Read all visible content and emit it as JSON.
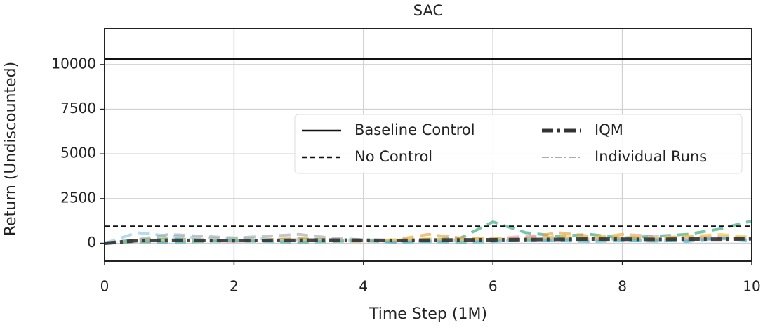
{
  "chart_data": {
    "type": "line",
    "title": "SAC",
    "xlabel": "Time Step (1M)",
    "ylabel": "Return (Undiscounted)",
    "x": [
      0,
      0.5,
      1,
      1.5,
      2,
      2.5,
      3,
      3.5,
      4,
      4.5,
      5,
      5.5,
      6,
      6.5,
      7,
      7.5,
      8,
      8.5,
      9,
      9.5,
      10
    ],
    "xlim": [
      0,
      10
    ],
    "xticks": [
      0,
      2,
      4,
      6,
      8,
      10
    ],
    "ylim": [
      -1000,
      12000
    ],
    "yticks": [
      0,
      2500,
      5000,
      7500,
      10000
    ],
    "grid": true,
    "hlines": [
      {
        "name": "Baseline Control",
        "value": 10300,
        "color": "#111111",
        "style": "solid"
      },
      {
        "name": "No Control",
        "value": 950,
        "color": "#111111",
        "style": "dashed"
      }
    ],
    "series": [
      {
        "name": "IQM",
        "color": "#333333",
        "style": "dashdot",
        "values": [
          0,
          150,
          170,
          160,
          150,
          160,
          170,
          180,
          170,
          160,
          180,
          190,
          200,
          210,
          220,
          240,
          230,
          220,
          240,
          230,
          250
        ]
      }
    ],
    "individual_runs": {
      "name": "Individual Runs",
      "legend_color": "#aaaaaa",
      "runs": [
        {
          "color": "#2ca87f",
          "values": [
            0,
            200,
            250,
            200,
            150,
            200,
            250,
            200,
            150,
            100,
            200,
            300,
            1200,
            600,
            400,
            500,
            300,
            400,
            500,
            800,
            1250
          ]
        },
        {
          "color": "#8ec8e8",
          "values": [
            0,
            600,
            400,
            300,
            300,
            250,
            200,
            200,
            150,
            100,
            100,
            150,
            200,
            150,
            200,
            300,
            200,
            100,
            200,
            300,
            250
          ]
        },
        {
          "color": "#a8a8a8",
          "values": [
            0,
            200,
            500,
            400,
            300,
            400,
            500,
            300,
            200,
            150,
            150,
            200,
            300,
            250,
            300,
            200,
            250,
            300,
            200,
            250,
            200
          ]
        },
        {
          "color": "#e8a040",
          "values": [
            0,
            100,
            150,
            200,
            150,
            200,
            250,
            150,
            100,
            200,
            500,
            300,
            200,
            300,
            600,
            400,
            300,
            200,
            400,
            300,
            200
          ]
        },
        {
          "color": "#e89ac8",
          "values": [
            0,
            50,
            100,
            150,
            100,
            150,
            100,
            200,
            150,
            100,
            150,
            200,
            250,
            400,
            300,
            200,
            500,
            400,
            300,
            400,
            300
          ]
        },
        {
          "color": "#e8d040",
          "values": [
            0,
            100,
            150,
            100,
            200,
            150,
            200,
            100,
            150,
            200,
            250,
            200,
            300,
            200,
            400,
            300,
            500,
            300,
            400,
            500,
            350
          ]
        },
        {
          "color": "#40b8c8",
          "values": [
            0,
            100,
            50,
            100,
            150,
            100,
            50,
            100,
            150,
            50,
            100,
            50,
            100,
            200,
            150,
            100,
            150,
            200,
            100,
            300,
            150
          ]
        }
      ]
    }
  }
}
